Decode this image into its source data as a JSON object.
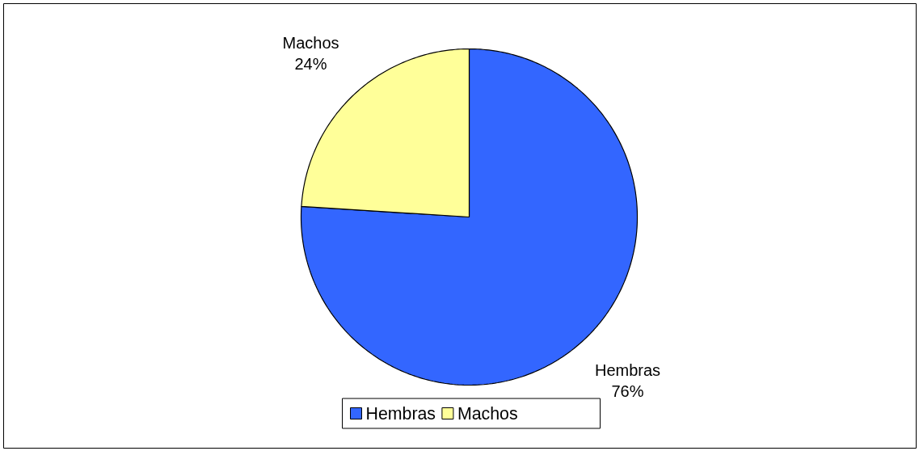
{
  "chart_data": {
    "type": "pie",
    "categories": [
      "Hembras",
      "Machos"
    ],
    "values": [
      76,
      24
    ],
    "colors": [
      "#3366ff",
      "#ffff99"
    ],
    "value_labels": [
      "76%",
      "24%"
    ],
    "legend": "bottom"
  }
}
